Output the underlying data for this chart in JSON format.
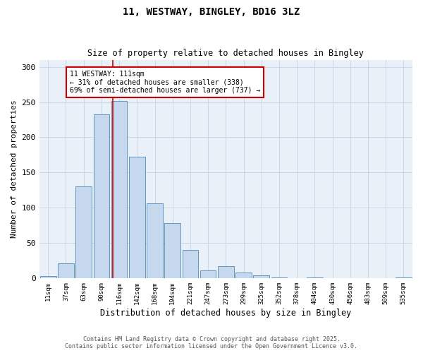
{
  "title_line1": "11, WESTWAY, BINGLEY, BD16 3LZ",
  "title_line2": "Size of property relative to detached houses in Bingley",
  "xlabel": "Distribution of detached houses by size in Bingley",
  "ylabel": "Number of detached properties",
  "categories": [
    "11sqm",
    "37sqm",
    "63sqm",
    "90sqm",
    "116sqm",
    "142sqm",
    "168sqm",
    "194sqm",
    "221sqm",
    "247sqm",
    "273sqm",
    "299sqm",
    "325sqm",
    "352sqm",
    "378sqm",
    "404sqm",
    "430sqm",
    "456sqm",
    "483sqm",
    "509sqm",
    "535sqm"
  ],
  "values": [
    3,
    21,
    130,
    233,
    252,
    172,
    106,
    78,
    40,
    11,
    17,
    8,
    4,
    1,
    0,
    1,
    0,
    0,
    0,
    0,
    1
  ],
  "bar_color": "#c5d8ed",
  "bar_edge_color": "#4e8ab5",
  "annotation_text": "11 WESTWAY: 111sqm\n← 31% of detached houses are smaller (338)\n69% of semi-detached houses are larger (737) →",
  "annotation_box_color": "#ffffff",
  "annotation_box_edge": "#cc0000",
  "red_line_color": "#cc0000",
  "grid_color": "#c8d8e8",
  "background_color": "#eaf0f8",
  "ylim": [
    0,
    310
  ],
  "yticks": [
    0,
    50,
    100,
    150,
    200,
    250,
    300
  ],
  "footer_line1": "Contains HM Land Registry data © Crown copyright and database right 2025.",
  "footer_line2": "Contains public sector information licensed under the Open Government Licence v3.0."
}
